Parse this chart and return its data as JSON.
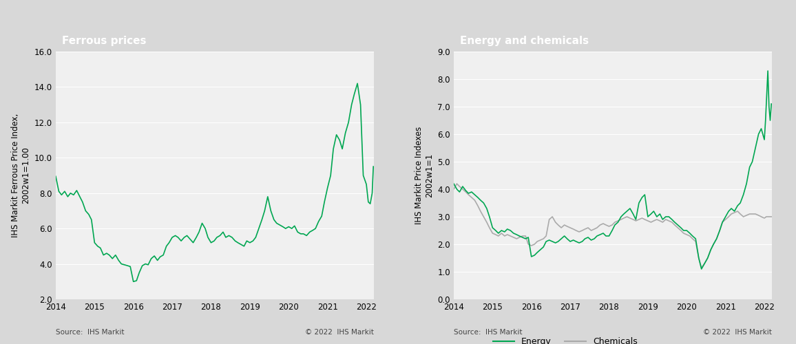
{
  "ferrous_title": "Ferrous prices",
  "energy_title": "Energy and chemicals",
  "ferrous_ylabel": "IHS Markit Ferrous Price Index,\n2002w1=1.00",
  "energy_ylabel": "IHS Markit Price Indexes\n2002w1=1",
  "ferrous_ylim": [
    2.0,
    16.0
  ],
  "ferrous_yticks": [
    2.0,
    4.0,
    6.0,
    8.0,
    10.0,
    12.0,
    14.0,
    16.0
  ],
  "energy_ylim": [
    0.0,
    9.0
  ],
  "energy_yticks": [
    0.0,
    1.0,
    2.0,
    3.0,
    4.0,
    5.0,
    6.0,
    7.0,
    8.0,
    9.0
  ],
  "xlim": [
    2014.0,
    2022.2
  ],
  "xticks": [
    2014,
    2015,
    2016,
    2017,
    2018,
    2019,
    2020,
    2021,
    2022
  ],
  "ferrous_color": "#00a651",
  "energy_color": "#00a651",
  "chemicals_color": "#aaaaaa",
  "title_bg_color": "#808080",
  "title_text_color": "#ffffff",
  "plot_bg_color": "#e8e8e8",
  "source_text": "Source:  IHS Markit",
  "copyright_text": "© 2022  IHS Markit",
  "legend_energy": "Energy",
  "legend_chemicals": "Chemicals",
  "ferrous_data": [
    [
      2014.0,
      8.95
    ],
    [
      2014.08,
      8.1
    ],
    [
      2014.15,
      7.9
    ],
    [
      2014.23,
      8.1
    ],
    [
      2014.31,
      7.8
    ],
    [
      2014.38,
      8.0
    ],
    [
      2014.46,
      7.9
    ],
    [
      2014.54,
      8.15
    ],
    [
      2014.62,
      7.8
    ],
    [
      2014.69,
      7.5
    ],
    [
      2014.77,
      7.0
    ],
    [
      2014.85,
      6.8
    ],
    [
      2014.92,
      6.5
    ],
    [
      2015.0,
      5.2
    ],
    [
      2015.08,
      5.0
    ],
    [
      2015.15,
      4.9
    ],
    [
      2015.23,
      4.5
    ],
    [
      2015.31,
      4.6
    ],
    [
      2015.38,
      4.5
    ],
    [
      2015.46,
      4.3
    ],
    [
      2015.54,
      4.5
    ],
    [
      2015.62,
      4.2
    ],
    [
      2015.69,
      4.0
    ],
    [
      2015.77,
      3.95
    ],
    [
      2015.85,
      3.9
    ],
    [
      2015.92,
      3.85
    ],
    [
      2016.0,
      3.0
    ],
    [
      2016.08,
      3.05
    ],
    [
      2016.15,
      3.5
    ],
    [
      2016.23,
      3.9
    ],
    [
      2016.31,
      4.0
    ],
    [
      2016.38,
      3.95
    ],
    [
      2016.46,
      4.3
    ],
    [
      2016.54,
      4.45
    ],
    [
      2016.62,
      4.2
    ],
    [
      2016.69,
      4.4
    ],
    [
      2016.77,
      4.5
    ],
    [
      2016.85,
      5.0
    ],
    [
      2016.92,
      5.2
    ],
    [
      2017.0,
      5.5
    ],
    [
      2017.08,
      5.6
    ],
    [
      2017.15,
      5.5
    ],
    [
      2017.23,
      5.3
    ],
    [
      2017.31,
      5.5
    ],
    [
      2017.38,
      5.6
    ],
    [
      2017.46,
      5.4
    ],
    [
      2017.54,
      5.2
    ],
    [
      2017.62,
      5.5
    ],
    [
      2017.69,
      5.8
    ],
    [
      2017.77,
      6.3
    ],
    [
      2017.85,
      6.0
    ],
    [
      2017.92,
      5.5
    ],
    [
      2018.0,
      5.2
    ],
    [
      2018.08,
      5.3
    ],
    [
      2018.15,
      5.5
    ],
    [
      2018.23,
      5.6
    ],
    [
      2018.31,
      5.8
    ],
    [
      2018.38,
      5.5
    ],
    [
      2018.46,
      5.6
    ],
    [
      2018.54,
      5.5
    ],
    [
      2018.62,
      5.3
    ],
    [
      2018.69,
      5.2
    ],
    [
      2018.77,
      5.1
    ],
    [
      2018.85,
      5.0
    ],
    [
      2018.92,
      5.3
    ],
    [
      2019.0,
      5.2
    ],
    [
      2019.08,
      5.3
    ],
    [
      2019.15,
      5.5
    ],
    [
      2019.23,
      6.0
    ],
    [
      2019.31,
      6.5
    ],
    [
      2019.38,
      7.0
    ],
    [
      2019.46,
      7.8
    ],
    [
      2019.54,
      7.0
    ],
    [
      2019.62,
      6.5
    ],
    [
      2019.69,
      6.3
    ],
    [
      2019.77,
      6.2
    ],
    [
      2019.85,
      6.1
    ],
    [
      2019.92,
      6.0
    ],
    [
      2020.0,
      6.1
    ],
    [
      2020.08,
      6.0
    ],
    [
      2020.15,
      6.15
    ],
    [
      2020.23,
      5.8
    ],
    [
      2020.31,
      5.7
    ],
    [
      2020.38,
      5.7
    ],
    [
      2020.46,
      5.6
    ],
    [
      2020.54,
      5.8
    ],
    [
      2020.62,
      5.9
    ],
    [
      2020.69,
      6.0
    ],
    [
      2020.77,
      6.4
    ],
    [
      2020.85,
      6.7
    ],
    [
      2020.92,
      7.5
    ],
    [
      2021.0,
      8.3
    ],
    [
      2021.08,
      9.0
    ],
    [
      2021.15,
      10.5
    ],
    [
      2021.23,
      11.3
    ],
    [
      2021.31,
      11.0
    ],
    [
      2021.38,
      10.5
    ],
    [
      2021.46,
      11.4
    ],
    [
      2021.54,
      12.0
    ],
    [
      2021.62,
      13.0
    ],
    [
      2021.69,
      13.6
    ],
    [
      2021.77,
      14.2
    ],
    [
      2021.85,
      13.0
    ],
    [
      2021.92,
      9.0
    ],
    [
      2022.0,
      8.5
    ],
    [
      2022.05,
      7.5
    ],
    [
      2022.1,
      7.4
    ],
    [
      2022.15,
      8.0
    ],
    [
      2022.18,
      9.5
    ]
  ],
  "energy_data": [
    [
      2014.0,
      4.2
    ],
    [
      2014.08,
      4.0
    ],
    [
      2014.15,
      3.9
    ],
    [
      2014.23,
      4.1
    ],
    [
      2014.31,
      3.95
    ],
    [
      2014.38,
      3.85
    ],
    [
      2014.46,
      3.9
    ],
    [
      2014.54,
      3.8
    ],
    [
      2014.62,
      3.7
    ],
    [
      2014.69,
      3.6
    ],
    [
      2014.77,
      3.5
    ],
    [
      2014.85,
      3.3
    ],
    [
      2014.92,
      3.0
    ],
    [
      2015.0,
      2.6
    ],
    [
      2015.08,
      2.5
    ],
    [
      2015.15,
      2.4
    ],
    [
      2015.23,
      2.5
    ],
    [
      2015.31,
      2.45
    ],
    [
      2015.38,
      2.55
    ],
    [
      2015.46,
      2.5
    ],
    [
      2015.54,
      2.4
    ],
    [
      2015.62,
      2.35
    ],
    [
      2015.69,
      2.3
    ],
    [
      2015.77,
      2.25
    ],
    [
      2015.85,
      2.2
    ],
    [
      2015.92,
      2.25
    ],
    [
      2016.0,
      1.55
    ],
    [
      2016.08,
      1.6
    ],
    [
      2016.15,
      1.7
    ],
    [
      2016.23,
      1.8
    ],
    [
      2016.31,
      1.9
    ],
    [
      2016.38,
      2.1
    ],
    [
      2016.46,
      2.15
    ],
    [
      2016.54,
      2.1
    ],
    [
      2016.62,
      2.05
    ],
    [
      2016.69,
      2.1
    ],
    [
      2016.77,
      2.2
    ],
    [
      2016.85,
      2.3
    ],
    [
      2016.92,
      2.2
    ],
    [
      2017.0,
      2.1
    ],
    [
      2017.08,
      2.15
    ],
    [
      2017.15,
      2.1
    ],
    [
      2017.23,
      2.05
    ],
    [
      2017.31,
      2.1
    ],
    [
      2017.38,
      2.2
    ],
    [
      2017.46,
      2.25
    ],
    [
      2017.54,
      2.15
    ],
    [
      2017.62,
      2.2
    ],
    [
      2017.69,
      2.3
    ],
    [
      2017.77,
      2.35
    ],
    [
      2017.85,
      2.4
    ],
    [
      2017.92,
      2.3
    ],
    [
      2018.0,
      2.3
    ],
    [
      2018.08,
      2.5
    ],
    [
      2018.15,
      2.7
    ],
    [
      2018.23,
      2.8
    ],
    [
      2018.31,
      3.0
    ],
    [
      2018.38,
      3.1
    ],
    [
      2018.46,
      3.2
    ],
    [
      2018.54,
      3.3
    ],
    [
      2018.62,
      3.1
    ],
    [
      2018.69,
      2.9
    ],
    [
      2018.77,
      3.5
    ],
    [
      2018.85,
      3.7
    ],
    [
      2018.92,
      3.8
    ],
    [
      2019.0,
      3.0
    ],
    [
      2019.08,
      3.1
    ],
    [
      2019.15,
      3.2
    ],
    [
      2019.23,
      3.0
    ],
    [
      2019.31,
      3.1
    ],
    [
      2019.38,
      2.9
    ],
    [
      2019.46,
      3.0
    ],
    [
      2019.54,
      3.0
    ],
    [
      2019.62,
      2.9
    ],
    [
      2019.69,
      2.8
    ],
    [
      2019.77,
      2.7
    ],
    [
      2019.85,
      2.6
    ],
    [
      2019.92,
      2.5
    ],
    [
      2020.0,
      2.5
    ],
    [
      2020.08,
      2.4
    ],
    [
      2020.15,
      2.3
    ],
    [
      2020.23,
      2.2
    ],
    [
      2020.31,
      1.5
    ],
    [
      2020.38,
      1.1
    ],
    [
      2020.46,
      1.3
    ],
    [
      2020.54,
      1.5
    ],
    [
      2020.62,
      1.8
    ],
    [
      2020.69,
      2.0
    ],
    [
      2020.77,
      2.2
    ],
    [
      2020.85,
      2.5
    ],
    [
      2020.92,
      2.8
    ],
    [
      2021.0,
      3.0
    ],
    [
      2021.08,
      3.2
    ],
    [
      2021.15,
      3.3
    ],
    [
      2021.23,
      3.2
    ],
    [
      2021.31,
      3.4
    ],
    [
      2021.38,
      3.5
    ],
    [
      2021.46,
      3.8
    ],
    [
      2021.54,
      4.2
    ],
    [
      2021.62,
      4.8
    ],
    [
      2021.69,
      5.0
    ],
    [
      2021.77,
      5.5
    ],
    [
      2021.85,
      6.0
    ],
    [
      2021.92,
      6.2
    ],
    [
      2022.0,
      5.8
    ],
    [
      2022.03,
      6.5
    ],
    [
      2022.06,
      7.4
    ],
    [
      2022.09,
      8.3
    ],
    [
      2022.12,
      7.0
    ],
    [
      2022.15,
      6.5
    ],
    [
      2022.18,
      7.1
    ]
  ],
  "chemicals_data": [
    [
      2014.0,
      4.0
    ],
    [
      2014.08,
      4.2
    ],
    [
      2014.15,
      4.1
    ],
    [
      2014.23,
      4.0
    ],
    [
      2014.31,
      3.9
    ],
    [
      2014.38,
      3.8
    ],
    [
      2014.46,
      3.7
    ],
    [
      2014.54,
      3.6
    ],
    [
      2014.62,
      3.4
    ],
    [
      2014.69,
      3.2
    ],
    [
      2014.77,
      3.0
    ],
    [
      2014.85,
      2.8
    ],
    [
      2014.92,
      2.6
    ],
    [
      2015.0,
      2.4
    ],
    [
      2015.08,
      2.35
    ],
    [
      2015.15,
      2.3
    ],
    [
      2015.23,
      2.4
    ],
    [
      2015.31,
      2.3
    ],
    [
      2015.38,
      2.35
    ],
    [
      2015.46,
      2.3
    ],
    [
      2015.54,
      2.25
    ],
    [
      2015.62,
      2.2
    ],
    [
      2015.69,
      2.25
    ],
    [
      2015.77,
      2.3
    ],
    [
      2015.85,
      2.3
    ],
    [
      2015.92,
      2.0
    ],
    [
      2016.0,
      1.95
    ],
    [
      2016.08,
      2.0
    ],
    [
      2016.15,
      2.1
    ],
    [
      2016.23,
      2.15
    ],
    [
      2016.31,
      2.2
    ],
    [
      2016.38,
      2.3
    ],
    [
      2016.46,
      2.9
    ],
    [
      2016.54,
      3.0
    ],
    [
      2016.62,
      2.8
    ],
    [
      2016.69,
      2.7
    ],
    [
      2016.77,
      2.6
    ],
    [
      2016.85,
      2.7
    ],
    [
      2016.92,
      2.65
    ],
    [
      2017.0,
      2.6
    ],
    [
      2017.08,
      2.55
    ],
    [
      2017.15,
      2.5
    ],
    [
      2017.23,
      2.45
    ],
    [
      2017.31,
      2.5
    ],
    [
      2017.38,
      2.55
    ],
    [
      2017.46,
      2.6
    ],
    [
      2017.54,
      2.5
    ],
    [
      2017.62,
      2.55
    ],
    [
      2017.69,
      2.6
    ],
    [
      2017.77,
      2.7
    ],
    [
      2017.85,
      2.75
    ],
    [
      2017.92,
      2.7
    ],
    [
      2018.0,
      2.65
    ],
    [
      2018.08,
      2.7
    ],
    [
      2018.15,
      2.8
    ],
    [
      2018.23,
      2.85
    ],
    [
      2018.31,
      2.9
    ],
    [
      2018.38,
      2.95
    ],
    [
      2018.46,
      3.0
    ],
    [
      2018.54,
      2.95
    ],
    [
      2018.62,
      2.9
    ],
    [
      2018.69,
      2.85
    ],
    [
      2018.77,
      2.9
    ],
    [
      2018.85,
      2.95
    ],
    [
      2018.92,
      2.9
    ],
    [
      2019.0,
      2.85
    ],
    [
      2019.08,
      2.8
    ],
    [
      2019.15,
      2.85
    ],
    [
      2019.23,
      2.9
    ],
    [
      2019.31,
      2.85
    ],
    [
      2019.38,
      2.8
    ],
    [
      2019.46,
      2.9
    ],
    [
      2019.54,
      2.85
    ],
    [
      2019.62,
      2.8
    ],
    [
      2019.69,
      2.7
    ],
    [
      2019.77,
      2.6
    ],
    [
      2019.85,
      2.5
    ],
    [
      2019.92,
      2.4
    ],
    [
      2020.0,
      2.35
    ],
    [
      2020.08,
      2.3
    ],
    [
      2020.15,
      2.2
    ],
    [
      2020.23,
      2.1
    ],
    [
      2020.31,
      1.5
    ],
    [
      2020.38,
      1.15
    ],
    [
      2020.46,
      1.3
    ],
    [
      2020.54,
      1.5
    ],
    [
      2020.62,
      1.8
    ],
    [
      2020.69,
      2.0
    ],
    [
      2020.77,
      2.2
    ],
    [
      2020.85,
      2.5
    ],
    [
      2020.92,
      2.8
    ],
    [
      2021.0,
      2.9
    ],
    [
      2021.08,
      3.0
    ],
    [
      2021.15,
      3.1
    ],
    [
      2021.23,
      3.15
    ],
    [
      2021.31,
      3.2
    ],
    [
      2021.38,
      3.1
    ],
    [
      2021.46,
      3.0
    ],
    [
      2021.54,
      3.05
    ],
    [
      2021.62,
      3.1
    ],
    [
      2021.69,
      3.1
    ],
    [
      2021.77,
      3.1
    ],
    [
      2021.85,
      3.05
    ],
    [
      2021.92,
      3.0
    ],
    [
      2022.0,
      2.95
    ],
    [
      2022.05,
      3.0
    ],
    [
      2022.1,
      3.0
    ],
    [
      2022.15,
      3.0
    ],
    [
      2022.18,
      3.0
    ]
  ]
}
